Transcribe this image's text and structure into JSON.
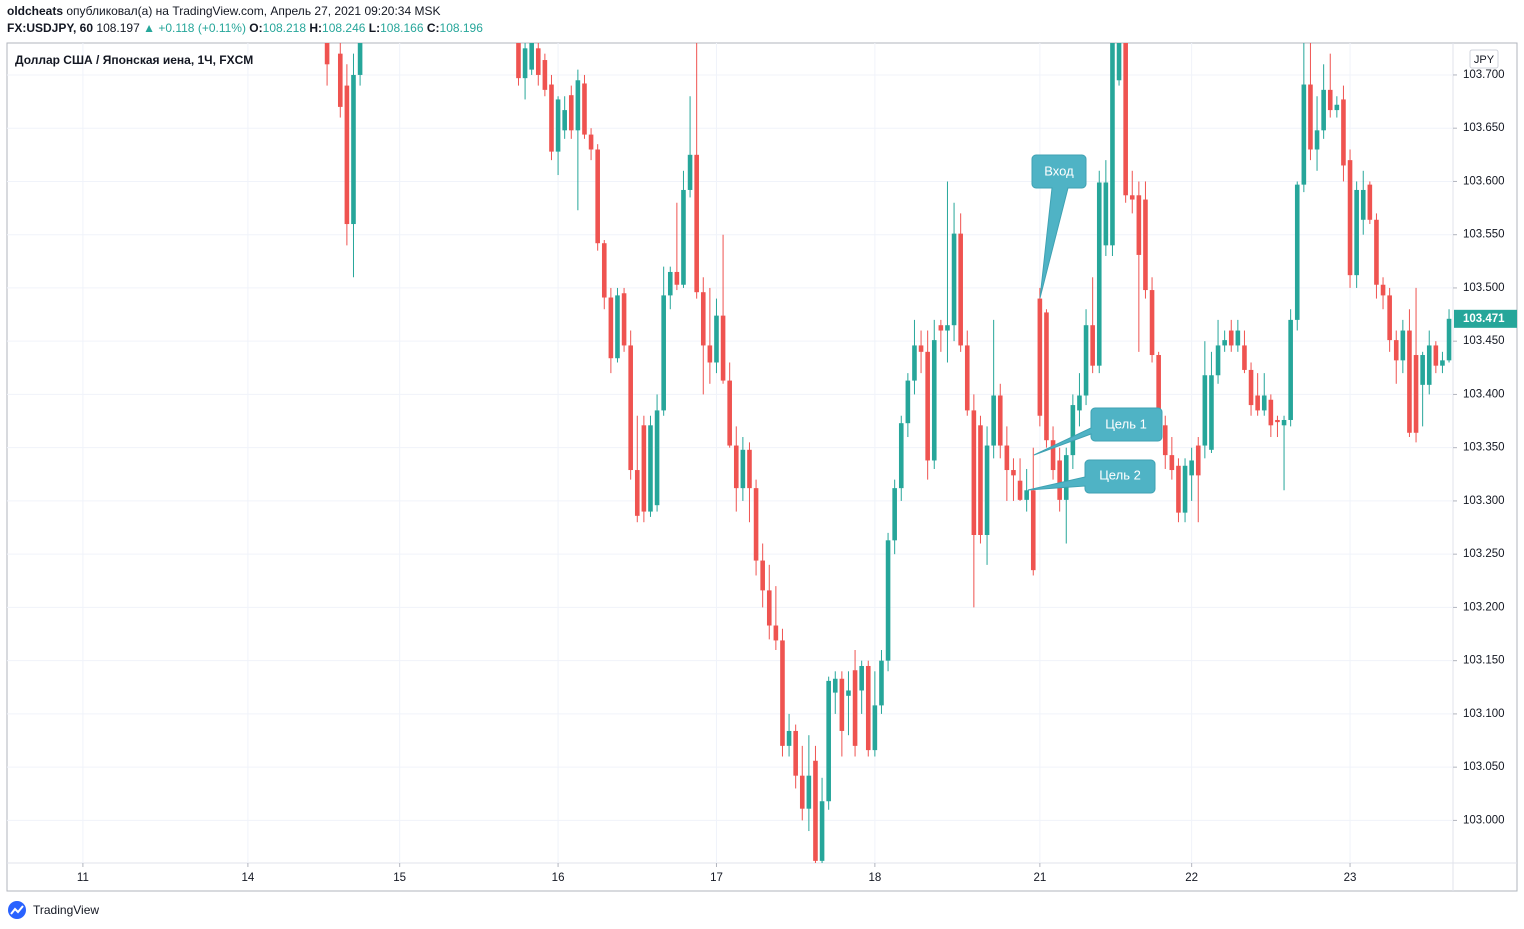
{
  "header": {
    "author": "oldcheats",
    "published": "опубликовал(а) на TradingView.com, Апрель 27, 2021 09:20:34 MSK",
    "symbol": "FX:USDJPY, 60",
    "price": "108.197",
    "change": "▲ +0.118 (+0.11%)",
    "ohlc": [
      {
        "label": "O:",
        "value": "108.218"
      },
      {
        "label": "H:",
        "value": "108.246"
      },
      {
        "label": "L:",
        "value": "108.166"
      },
      {
        "label": "C:",
        "value": "108.196"
      }
    ]
  },
  "chart_data": {
    "type": "candlestick",
    "title": "Доллар США / Японская иена, 1Ч, FXCM",
    "currency": "JPY",
    "up_color": "#26a69a",
    "down_color": "#ef5350",
    "grid": true,
    "annotations": [
      "Вход",
      "Цель 1",
      "Цель 2"
    ],
    "xlim": [
      -11.5,
      207.6
    ],
    "ylim": [
      102.96,
      103.73
    ],
    "xticks": [
      {
        "value": 0,
        "label": "11"
      },
      {
        "value": 25,
        "label": "14"
      },
      {
        "value": 48,
        "label": "15"
      },
      {
        "value": 72,
        "label": "16"
      },
      {
        "value": 96,
        "label": "17"
      },
      {
        "value": 120,
        "label": "18"
      },
      {
        "value": 145,
        "label": "21"
      },
      {
        "value": 168,
        "label": "22"
      },
      {
        "value": 192,
        "label": "23"
      }
    ],
    "yticks": [
      {
        "value": 103.0,
        "label": "103.000"
      },
      {
        "value": 103.05,
        "label": "103.050"
      },
      {
        "value": 103.1,
        "label": "103.100"
      },
      {
        "value": 103.15,
        "label": "103.150"
      },
      {
        "value": 103.2,
        "label": "103.200"
      },
      {
        "value": 103.25,
        "label": "103.250"
      },
      {
        "value": 103.3,
        "label": "103.300"
      },
      {
        "value": 103.35,
        "label": "103.350"
      },
      {
        "value": 103.4,
        "label": "103.400"
      },
      {
        "value": 103.45,
        "label": "103.450"
      },
      {
        "value": 103.5,
        "label": "103.500"
      },
      {
        "value": 103.55,
        "label": "103.550"
      },
      {
        "value": 103.6,
        "label": "103.600"
      },
      {
        "value": 103.65,
        "label": "103.650"
      },
      {
        "value": 103.7,
        "label": "103.700"
      }
    ],
    "x": [
      37,
      39,
      40,
      41,
      42,
      66,
      67,
      68,
      69,
      70,
      71,
      72,
      73,
      74,
      75,
      76,
      77,
      78,
      79,
      80,
      81,
      82,
      83,
      84,
      85,
      86,
      87,
      88,
      89,
      90,
      91,
      92,
      93,
      94,
      95,
      96,
      97,
      98,
      99,
      100,
      101,
      102,
      103,
      104,
      105,
      106,
      107,
      108,
      109,
      110,
      111,
      112,
      113,
      114,
      115,
      116,
      117,
      118,
      119,
      120,
      121,
      122,
      123,
      124,
      125,
      126,
      127,
      128,
      129,
      130,
      131,
      132,
      133,
      134,
      135,
      136,
      137,
      138,
      139,
      140,
      141,
      142,
      143,
      144,
      145,
      146,
      147,
      148,
      149,
      150,
      151,
      152,
      153,
      154,
      155,
      156,
      157,
      158,
      159,
      160,
      161,
      162,
      163,
      164,
      165,
      166,
      167,
      168,
      169,
      170,
      171,
      172,
      173,
      174,
      175,
      176,
      177,
      178,
      179,
      180,
      181,
      182,
      183,
      184,
      185,
      186,
      187,
      188,
      189,
      190,
      191,
      192,
      193,
      194,
      195,
      196,
      197,
      198,
      199,
      200,
      201,
      202,
      203,
      204,
      205,
      206,
      207
    ],
    "open": [
      103.735,
      103.72,
      103.69,
      103.56,
      103.7,
      103.735,
      103.697,
      103.705,
      103.725,
      103.714,
      103.691,
      103.628,
      103.648,
      103.681,
      103.648,
      103.692,
      103.644,
      103.63,
      103.542,
      103.491,
      103.434,
      103.495,
      103.446,
      103.329,
      103.371,
      103.29,
      103.296,
      103.385,
      103.493,
      103.515,
      103.503,
      103.592,
      103.625,
      103.496,
      103.446,
      103.43,
      103.474,
      103.413,
      103.352,
      103.312,
      103.348,
      103.312,
      103.244,
      103.216,
      103.183,
      103.169,
      103.07,
      103.084,
      103.042,
      103.011,
      103.056,
      102.962,
      103.018,
      103.12,
      103.133,
      103.117,
      103.141,
      103.122,
      103.145,
      103.066,
      103.108,
      103.15,
      103.263,
      103.312,
      103.373,
      103.413,
      103.446,
      103.44,
      103.338,
      103.465,
      103.46,
      103.465,
      103.551,
      103.446,
      103.385,
      103.371,
      103.268,
      103.352,
      103.399,
      103.352,
      103.329,
      103.319,
      103.301,
      103.31,
      103.49,
      103.477,
      103.357,
      103.338,
      103.301,
      103.343,
      103.385,
      103.399,
      103.465,
      103.427,
      103.54,
      103.54,
      103.695,
      103.73,
      103.587,
      103.587,
      103.583,
      103.498,
      103.437,
      103.371,
      103.343,
      103.333,
      103.289,
      103.324,
      103.352,
      103.352,
      103.348,
      103.418,
      103.446,
      103.46,
      103.446,
      103.446,
      103.423,
      103.399,
      103.385,
      103.395,
      103.376,
      103.371,
      103.376,
      103.47,
      103.597,
      103.691,
      103.63,
      103.648,
      103.686,
      103.667,
      103.677,
      103.62,
      103.512,
      103.564,
      103.597,
      103.564,
      103.503,
      103.493,
      103.451,
      103.432,
      103.46,
      103.437,
      103.409,
      103.409,
      103.446,
      103.427,
      103.432
    ],
    "high": [
      103.76,
      103.74,
      103.71,
      103.72,
      103.75,
      103.745,
      103.73,
      103.745,
      103.735,
      103.72,
      103.7,
      103.68,
      103.68,
      103.69,
      103.705,
      103.7,
      103.65,
      103.635,
      103.545,
      103.5,
      103.5,
      103.5,
      103.46,
      103.38,
      103.38,
      103.38,
      103.4,
      103.52,
      103.52,
      103.58,
      103.61,
      103.68,
      103.73,
      103.51,
      103.5,
      103.49,
      103.55,
      103.43,
      103.37,
      103.36,
      103.355,
      103.32,
      103.26,
      103.24,
      103.22,
      103.18,
      103.1,
      103.09,
      103.07,
      103.08,
      103.07,
      103.04,
      103.135,
      103.14,
      103.14,
      103.14,
      103.16,
      103.15,
      103.15,
      103.14,
      103.16,
      103.27,
      103.32,
      103.38,
      103.42,
      103.47,
      103.46,
      103.46,
      103.47,
      103.47,
      103.6,
      103.58,
      103.57,
      103.46,
      103.4,
      103.38,
      103.37,
      103.47,
      103.41,
      103.37,
      103.34,
      103.34,
      103.33,
      103.35,
      103.5,
      103.48,
      103.37,
      103.35,
      103.35,
      103.4,
      103.42,
      103.48,
      103.51,
      103.61,
      103.62,
      103.74,
      103.74,
      103.74,
      103.61,
      103.6,
      103.6,
      103.51,
      103.44,
      103.38,
      103.36,
      103.34,
      103.34,
      103.35,
      103.36,
      103.45,
      103.44,
      103.47,
      103.46,
      103.47,
      103.47,
      103.46,
      103.43,
      103.42,
      103.42,
      103.4,
      103.38,
      103.38,
      103.48,
      103.6,
      103.73,
      103.73,
      103.68,
      103.71,
      103.72,
      103.68,
      103.69,
      103.63,
      103.6,
      103.61,
      103.6,
      103.57,
      103.51,
      103.5,
      103.46,
      103.47,
      103.48,
      103.5,
      103.44,
      103.46,
      103.45,
      103.44,
      103.48
    ],
    "low": [
      103.69,
      103.66,
      103.54,
      103.51,
      103.69,
      103.69,
      103.677,
      103.7,
      103.69,
      103.68,
      103.62,
      103.606,
      103.64,
      103.64,
      103.573,
      103.64,
      103.62,
      103.535,
      103.48,
      103.42,
      103.43,
      103.44,
      103.32,
      103.28,
      103.28,
      103.285,
      103.29,
      103.38,
      103.48,
      103.498,
      103.5,
      103.585,
      103.49,
      103.4,
      103.41,
      103.42,
      103.41,
      103.35,
      103.29,
      103.3,
      103.28,
      103.23,
      103.2,
      103.17,
      103.16,
      103.06,
      103.06,
      103.03,
      103.0,
      102.99,
      102.96,
      102.96,
      103.01,
      103.1,
      103.06,
      103.08,
      103.06,
      103.1,
      103.06,
      103.06,
      103.1,
      103.14,
      103.25,
      103.3,
      103.36,
      103.4,
      103.42,
      103.32,
      103.33,
      103.44,
      103.43,
      103.45,
      103.44,
      103.38,
      103.2,
      103.26,
      103.24,
      103.34,
      103.34,
      103.3,
      103.3,
      103.3,
      103.29,
      103.23,
      103.37,
      103.35,
      103.32,
      103.29,
      103.26,
      103.33,
      103.37,
      103.39,
      103.42,
      103.42,
      103.53,
      103.53,
      103.69,
      103.58,
      103.57,
      103.44,
      103.49,
      103.43,
      103.36,
      103.33,
      103.32,
      103.28,
      103.28,
      103.3,
      103.28,
      103.34,
      103.345,
      103.41,
      103.44,
      103.44,
      103.44,
      103.42,
      103.38,
      103.38,
      103.38,
      103.36,
      103.36,
      103.31,
      103.37,
      103.46,
      103.59,
      103.62,
      103.61,
      103.64,
      103.66,
      103.66,
      103.6,
      103.5,
      103.5,
      103.55,
      103.56,
      103.49,
      103.48,
      103.44,
      103.41,
      103.42,
      103.36,
      103.355,
      103.37,
      103.4,
      103.42,
      103.42,
      103.43
    ],
    "close": [
      103.71,
      103.67,
      103.56,
      103.7,
      103.74,
      103.697,
      103.725,
      103.73,
      103.7,
      103.686,
      103.628,
      103.677,
      103.667,
      103.648,
      103.695,
      103.644,
      103.63,
      103.542,
      103.491,
      103.434,
      103.493,
      103.446,
      103.329,
      103.286,
      103.29,
      103.371,
      103.385,
      103.493,
      103.515,
      103.503,
      103.592,
      103.625,
      103.496,
      103.446,
      103.43,
      103.474,
      103.413,
      103.352,
      103.312,
      103.348,
      103.312,
      103.244,
      103.216,
      103.183,
      103.169,
      103.07,
      103.084,
      103.042,
      103.011,
      103.042,
      102.962,
      103.018,
      103.131,
      103.133,
      103.084,
      103.122,
      103.07,
      103.145,
      103.066,
      103.108,
      103.15,
      103.263,
      103.312,
      103.373,
      103.413,
      103.446,
      103.44,
      103.338,
      103.451,
      103.46,
      103.465,
      103.551,
      103.446,
      103.385,
      103.268,
      103.268,
      103.352,
      103.399,
      103.352,
      103.329,
      103.324,
      103.301,
      103.31,
      103.235,
      103.38,
      103.357,
      103.329,
      103.301,
      103.343,
      103.39,
      103.399,
      103.465,
      103.427,
      103.599,
      103.599,
      103.73,
      103.73,
      103.587,
      103.583,
      103.531,
      103.498,
      103.437,
      103.371,
      103.343,
      103.329,
      103.289,
      103.333,
      103.338,
      103.324,
      103.418,
      103.418,
      103.446,
      103.451,
      103.446,
      103.46,
      103.423,
      103.39,
      103.385,
      103.399,
      103.371,
      103.374,
      103.376,
      103.47,
      103.597,
      103.691,
      103.63,
      103.648,
      103.686,
      103.667,
      103.672,
      103.615,
      103.512,
      103.592,
      103.592,
      103.564,
      103.503,
      103.493,
      103.451,
      103.432,
      103.46,
      103.364,
      103.364,
      103.437,
      103.446,
      103.427,
      103.432,
      103.471
    ]
  },
  "footer": {
    "brand": "TradingView"
  }
}
